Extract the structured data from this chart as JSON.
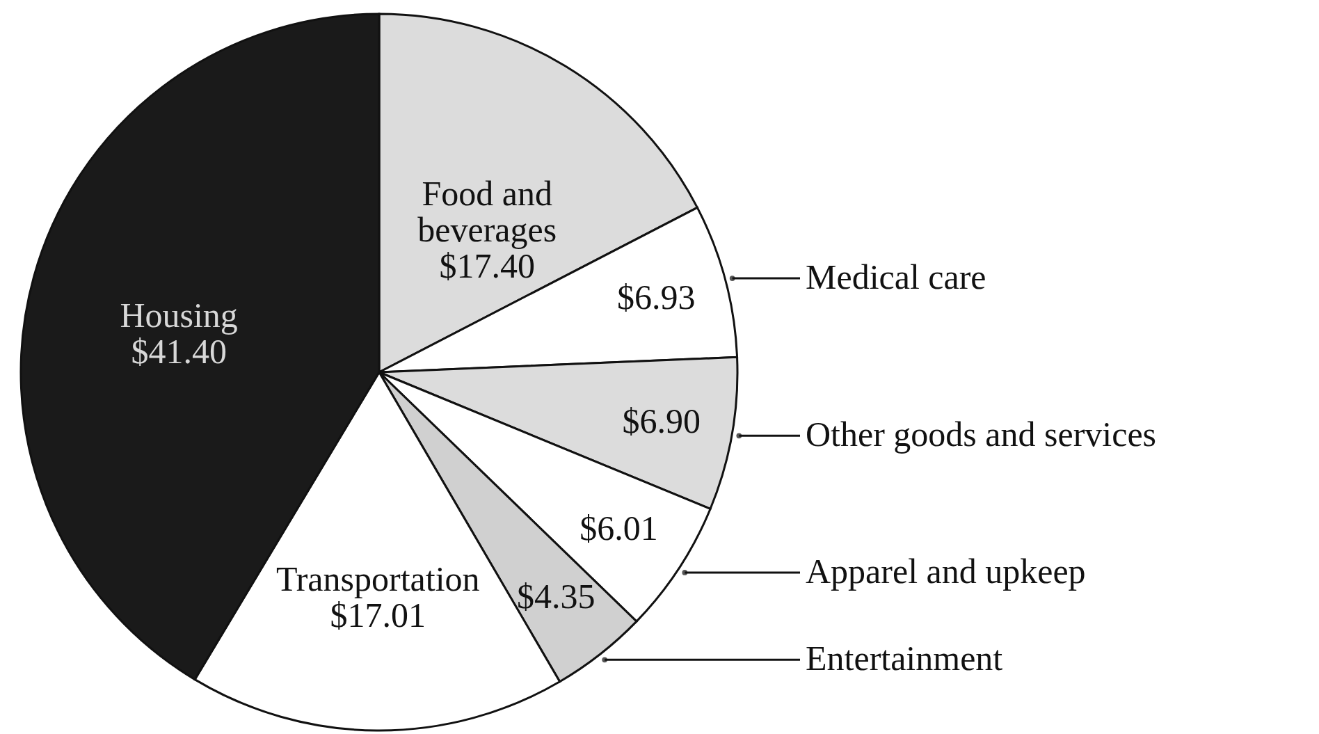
{
  "chart_data": {
    "type": "pie",
    "categories": [
      "Food and beverages",
      "Medical care",
      "Other goods and services",
      "Apparel and upkeep",
      "Entertainment",
      "Transportation",
      "Housing"
    ],
    "values": [
      17.4,
      6.93,
      6.9,
      6.01,
      4.35,
      17.01,
      41.4
    ],
    "value_labels": [
      "$17.40",
      "$6.93",
      "$6.90",
      "$6.01",
      "$4.35",
      "$17.01",
      "$41.40"
    ],
    "colors": [
      "#dcdcdc",
      "#ffffff",
      "#dcdcdc",
      "#ffffff",
      "#d0d0d0",
      "#ffffff",
      "#1a1a1a"
    ],
    "legend": "right"
  }
}
